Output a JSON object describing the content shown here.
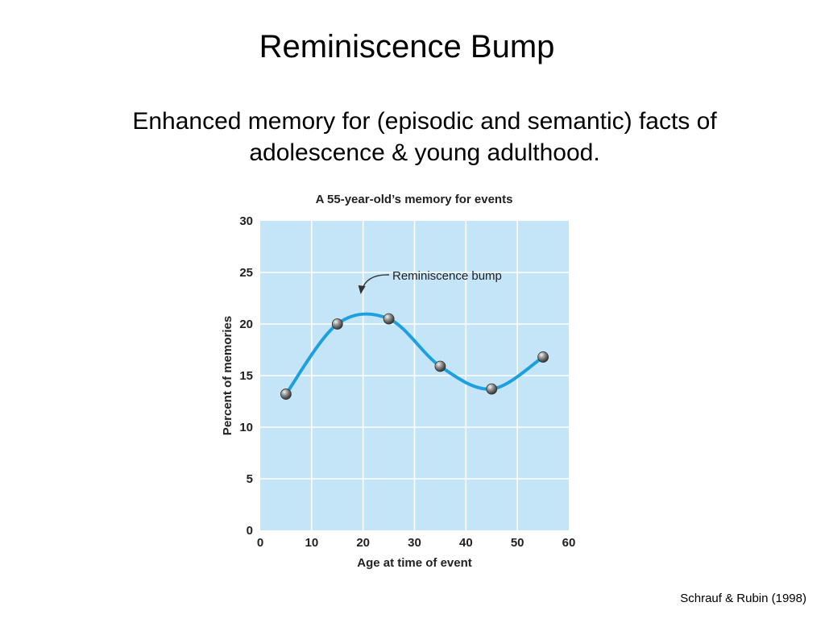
{
  "slide": {
    "title": "Reminiscence Bump",
    "subtitle_line1": "Enhanced memory for (episodic and semantic) facts of",
    "subtitle_line2": "adolescence & young adulthood.",
    "citation": "Schrauf & Rubin (1998)"
  },
  "chart_data": {
    "type": "line",
    "title": "A 55-year-old’s memory for events",
    "xlabel": "Age at time of event",
    "ylabel": "Percent of memories",
    "xlim": [
      0,
      60
    ],
    "ylim": [
      0,
      30
    ],
    "x_ticks": [
      0,
      10,
      20,
      30,
      40,
      50,
      60
    ],
    "y_ticks": [
      0,
      5,
      10,
      15,
      20,
      25,
      30
    ],
    "grid": true,
    "smooth": true,
    "series": [
      {
        "x": [
          5,
          15,
          25,
          35,
          45,
          55
        ],
        "y": [
          13.2,
          20.0,
          20.5,
          15.9,
          13.7,
          16.8
        ]
      }
    ],
    "annotation": {
      "text": "Reminiscence bump",
      "points_to_x": 20
    },
    "colors": {
      "plot_background": "#c4e5f7",
      "gridline": "#ffffff",
      "line": "#1ea0e0",
      "marker": "#555555"
    }
  }
}
